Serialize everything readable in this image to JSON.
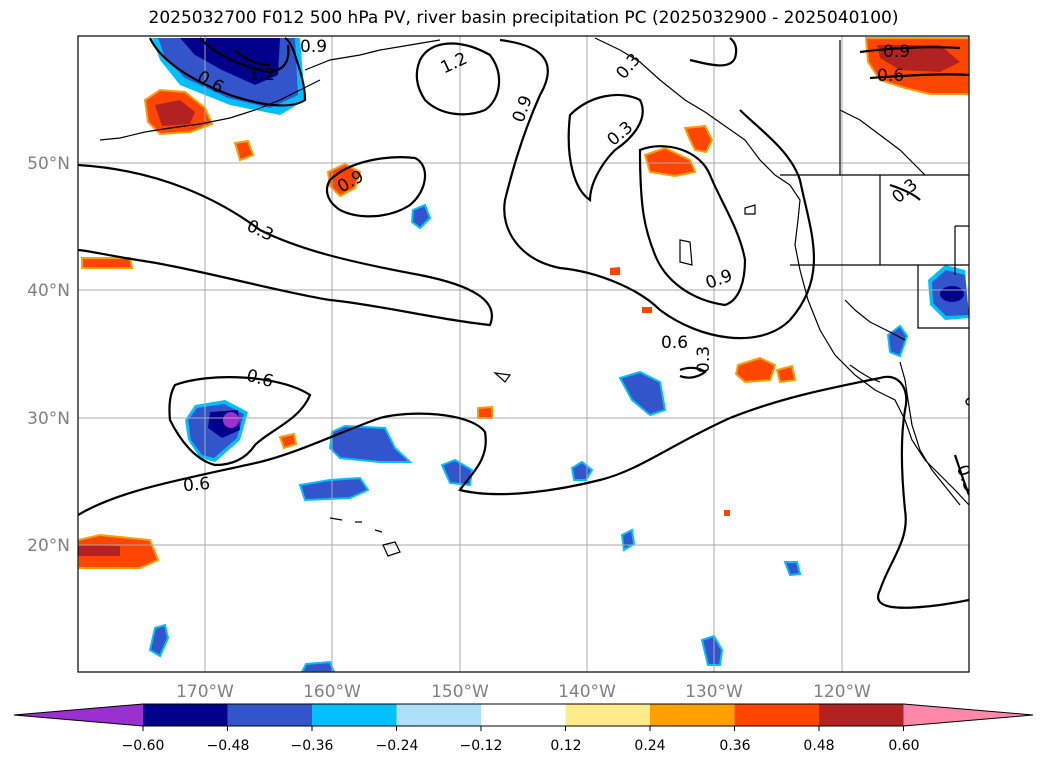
{
  "title": "2025032700 F012 500 hPa PV, river basin precipitation PC (2025032900 - 2025040100)",
  "map": {
    "lat_labels": [
      "50°N",
      "40°N",
      "30°N",
      "20°N"
    ],
    "lon_labels": [
      "170°W",
      "160°W",
      "150°W",
      "140°W",
      "130°W",
      "120°W"
    ],
    "contour_labels": [
      "0.6",
      "1.2",
      "0.9",
      "1.2",
      "0.9",
      "0.3",
      "0.3",
      "0.9",
      "0.3",
      "0.9",
      "0.6",
      "0.6",
      "0.3",
      "0.6",
      "0.3",
      "0.9",
      "0.6",
      "0.3",
      "0.6"
    ]
  },
  "colorbar": {
    "colors": [
      "#9b30d0",
      "#00008b",
      "#3355cc",
      "#00bfff",
      "#afe0fa",
      "#ffffff",
      "#ffeb8c",
      "#ffa000",
      "#ff4500",
      "#b22222",
      "#ff88aa"
    ],
    "tick_labels": [
      "−0.60",
      "−0.48",
      "−0.36",
      "−0.24",
      "−0.12",
      "0.12",
      "0.24",
      "0.36",
      "0.48",
      "0.60"
    ]
  }
}
